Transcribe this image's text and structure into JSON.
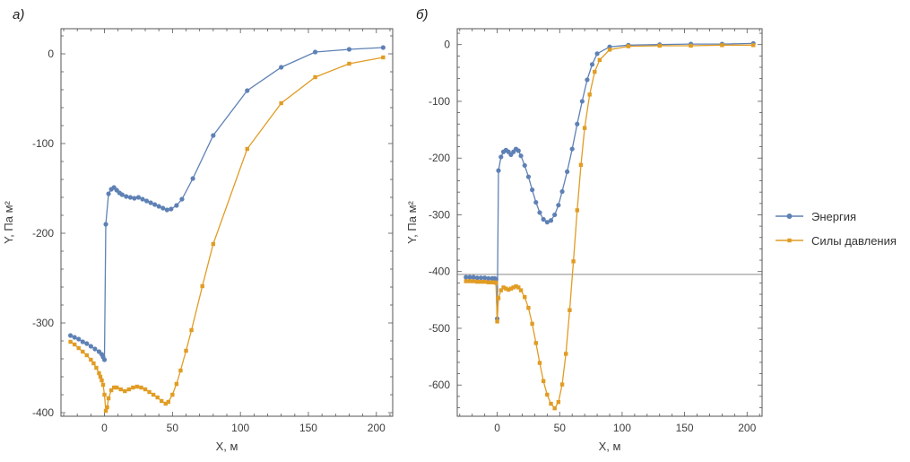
{
  "chart_data": [
    {
      "type": "line",
      "panel_label": "а)",
      "xlabel": "X, м",
      "ylabel": "Y, Па м²",
      "xlim": [
        -32,
        212
      ],
      "ylim": [
        -404,
        28
      ],
      "xticks": [
        0,
        50,
        100,
        150,
        200
      ],
      "yticks": [
        0,
        -100,
        -200,
        -300,
        -400
      ],
      "grid": false,
      "refline_y": null,
      "series": [
        {
          "name": "Энергия",
          "color": "#5e81b5",
          "marker": "circle",
          "points": [
            [
              -25,
              -314
            ],
            [
              -22,
              -316
            ],
            [
              -19,
              -318
            ],
            [
              -16,
              -321
            ],
            [
              -13,
              -323
            ],
            [
              -10,
              -326
            ],
            [
              -7,
              -329
            ],
            [
              -4,
              -332
            ],
            [
              -2,
              -335
            ],
            [
              -1,
              -338
            ],
            [
              0,
              -341
            ],
            [
              1,
              -190
            ],
            [
              3,
              -156
            ],
            [
              5,
              -151
            ],
            [
              7,
              -149
            ],
            [
              9,
              -152
            ],
            [
              11,
              -155
            ],
            [
              13,
              -157
            ],
            [
              16,
              -159
            ],
            [
              19,
              -160
            ],
            [
              22,
              -161
            ],
            [
              25,
              -160
            ],
            [
              28,
              -162
            ],
            [
              31,
              -164
            ],
            [
              34,
              -166
            ],
            [
              37,
              -168
            ],
            [
              40,
              -170
            ],
            [
              43,
              -172
            ],
            [
              46,
              -174
            ],
            [
              49,
              -173
            ],
            [
              53,
              -169
            ],
            [
              57,
              -162
            ],
            [
              65,
              -139
            ],
            [
              80,
              -91
            ],
            [
              105,
              -41
            ],
            [
              130,
              -15
            ],
            [
              155,
              2
            ],
            [
              180,
              5
            ],
            [
              205,
              7
            ]
          ]
        },
        {
          "name": "Силы давления",
          "color": "#e19c24",
          "marker": "square",
          "points": [
            [
              -25,
              -321
            ],
            [
              -22,
              -324
            ],
            [
              -19,
              -328
            ],
            [
              -16,
              -332
            ],
            [
              -13,
              -336
            ],
            [
              -10,
              -341
            ],
            [
              -8,
              -345
            ],
            [
              -6,
              -350
            ],
            [
              -4,
              -356
            ],
            [
              -3,
              -360
            ],
            [
              -2,
              -364
            ],
            [
              -1,
              -369
            ],
            [
              0,
              -380
            ],
            [
              1,
              -398
            ],
            [
              2,
              -394
            ],
            [
              3,
              -384
            ],
            [
              5,
              -375
            ],
            [
              7,
              -372
            ],
            [
              9,
              -372
            ],
            [
              12,
              -374
            ],
            [
              15,
              -376
            ],
            [
              18,
              -374
            ],
            [
              21,
              -372
            ],
            [
              24,
              -371
            ],
            [
              27,
              -372
            ],
            [
              30,
              -374
            ],
            [
              33,
              -377
            ],
            [
              36,
              -380
            ],
            [
              39,
              -383
            ],
            [
              42,
              -387
            ],
            [
              45,
              -390
            ],
            [
              47,
              -388
            ],
            [
              50,
              -380
            ],
            [
              53,
              -368
            ],
            [
              56,
              -353
            ],
            [
              60,
              -331
            ],
            [
              64,
              -308
            ],
            [
              72,
              -259
            ],
            [
              80,
              -212
            ],
            [
              105,
              -106
            ],
            [
              130,
              -55
            ],
            [
              155,
              -26
            ],
            [
              180,
              -11
            ],
            [
              205,
              -4
            ]
          ]
        }
      ]
    },
    {
      "type": "line",
      "panel_label": "б)",
      "xlabel": "X, м",
      "ylabel": "Y, Па м²",
      "xlim": [
        -32,
        212
      ],
      "ylim": [
        -655,
        28
      ],
      "xticks": [
        0,
        50,
        100,
        150,
        200
      ],
      "yticks": [
        0,
        -100,
        -200,
        -300,
        -400,
        -500,
        -600
      ],
      "grid": false,
      "refline_y": -405,
      "series": [
        {
          "name": "Энергия",
          "color": "#5e81b5",
          "marker": "circle",
          "points": [
            [
              -25,
              -410
            ],
            [
              -22,
              -410
            ],
            [
              -19,
              -410
            ],
            [
              -16,
              -411
            ],
            [
              -13,
              -411
            ],
            [
              -10,
              -411
            ],
            [
              -7,
              -412
            ],
            [
              -4,
              -412
            ],
            [
              -2,
              -412
            ],
            [
              -1,
              -413
            ],
            [
              0,
              -483
            ],
            [
              1,
              -222
            ],
            [
              3,
              -198
            ],
            [
              5,
              -189
            ],
            [
              7,
              -186
            ],
            [
              9,
              -189
            ],
            [
              11,
              -194
            ],
            [
              13,
              -189
            ],
            [
              15,
              -184
            ],
            [
              17,
              -187
            ],
            [
              19,
              -196
            ],
            [
              22,
              -213
            ],
            [
              25,
              -233
            ],
            [
              28,
              -256
            ],
            [
              31,
              -278
            ],
            [
              34,
              -296
            ],
            [
              37,
              -308
            ],
            [
              40,
              -313
            ],
            [
              43,
              -310
            ],
            [
              46,
              -300
            ],
            [
              49,
              -283
            ],
            [
              52,
              -259
            ],
            [
              56,
              -224
            ],
            [
              60,
              -184
            ],
            [
              64,
              -140
            ],
            [
              68,
              -100
            ],
            [
              72,
              -62
            ],
            [
              76,
              -35
            ],
            [
              80,
              -16
            ],
            [
              90,
              -4
            ],
            [
              105,
              -1
            ],
            [
              130,
              0
            ],
            [
              155,
              1
            ],
            [
              180,
              1
            ],
            [
              205,
              2
            ]
          ]
        },
        {
          "name": "Силы давления",
          "color": "#e19c24",
          "marker": "square",
          "points": [
            [
              -25,
              -417
            ],
            [
              -22,
              -417
            ],
            [
              -19,
              -417
            ],
            [
              -16,
              -418
            ],
            [
              -13,
              -418
            ],
            [
              -10,
              -418
            ],
            [
              -7,
              -419
            ],
            [
              -4,
              -419
            ],
            [
              -2,
              -419
            ],
            [
              -1,
              -420
            ],
            [
              0,
              -488
            ],
            [
              1,
              -447
            ],
            [
              3,
              -433
            ],
            [
              5,
              -428
            ],
            [
              7,
              -430
            ],
            [
              9,
              -432
            ],
            [
              11,
              -430
            ],
            [
              13,
              -428
            ],
            [
              15,
              -426
            ],
            [
              17,
              -428
            ],
            [
              19,
              -433
            ],
            [
              22,
              -445
            ],
            [
              25,
              -464
            ],
            [
              28,
              -492
            ],
            [
              31,
              -526
            ],
            [
              34,
              -561
            ],
            [
              37,
              -593
            ],
            [
              40,
              -617
            ],
            [
              43,
              -633
            ],
            [
              46,
              -641
            ],
            [
              49,
              -630
            ],
            [
              52,
              -599
            ],
            [
              55,
              -545
            ],
            [
              58,
              -468
            ],
            [
              61,
              -382
            ],
            [
              64,
              -292
            ],
            [
              67,
              -212
            ],
            [
              70,
              -147
            ],
            [
              74,
              -88
            ],
            [
              78,
              -48
            ],
            [
              82,
              -27
            ],
            [
              90,
              -9
            ],
            [
              105,
              -3
            ],
            [
              130,
              -2
            ],
            [
              155,
              -2
            ],
            [
              180,
              -1
            ],
            [
              205,
              -1
            ]
          ]
        }
      ]
    }
  ],
  "legend": {
    "items": [
      {
        "label": "Энергия",
        "color": "#5e81b5",
        "marker": "circle"
      },
      {
        "label": "Силы давления",
        "color": "#e19c24",
        "marker": "square"
      }
    ]
  },
  "colors": {
    "energy_blue": "#5e81b5",
    "pressure_orange": "#e19c24",
    "frame_gray": "#555555",
    "text_gray": "#3d3d3d"
  }
}
